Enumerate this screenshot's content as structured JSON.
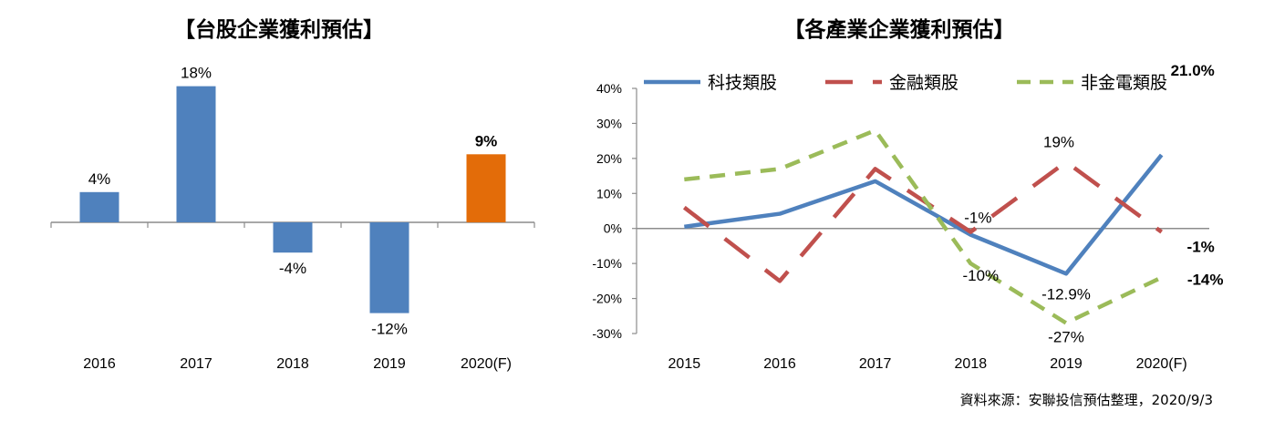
{
  "chart_data": [
    {
      "type": "bar",
      "title": "【台股企業獲利預估】",
      "categories": [
        "2016",
        "2017",
        "2018",
        "2019",
        "2020(F)"
      ],
      "values": [
        4,
        18,
        -4,
        -12,
        9
      ],
      "data_labels": [
        "4%",
        "18%",
        "-4%",
        "-12%",
        "9%"
      ],
      "bar_colors": [
        "#4f81bd",
        "#4f81bd",
        "#4f81bd",
        "#4f81bd",
        "#e36c09"
      ],
      "highlight_index": 4,
      "ylim": [
        -14,
        20
      ]
    },
    {
      "type": "line",
      "title": "【各產業企業獲利預估】",
      "x": [
        "2015",
        "2016",
        "2017",
        "2018",
        "2019",
        "2020(F)"
      ],
      "ylim": [
        -30,
        40
      ],
      "yticks": [
        "40%",
        "30%",
        "20%",
        "10%",
        "0%",
        "-10%",
        "-20%",
        "-30%"
      ],
      "legend_position": "top",
      "series": [
        {
          "name": "科技類股",
          "values": [
            0.5,
            4.2,
            13.5,
            -1.8,
            -12.9,
            21.0
          ],
          "color": "#4f81bd",
          "style": "solid",
          "labels": [
            {
              "i": 4,
              "text": "-12.9%",
              "bold": false
            },
            {
              "i": 5,
              "text": "21.0%",
              "bold": true
            }
          ]
        },
        {
          "name": "金融類股",
          "values": [
            6,
            -15,
            17,
            -1,
            19,
            -1
          ],
          "color": "#c0504d",
          "style": "long-dash",
          "labels": [
            {
              "i": 3,
              "text": "-1%",
              "bold": false
            },
            {
              "i": 4,
              "text": "19%",
              "bold": false
            },
            {
              "i": 5,
              "text": "-1%",
              "bold": true
            }
          ]
        },
        {
          "name": "非金電類股",
          "values": [
            14,
            17,
            28,
            -10,
            -27,
            -14
          ],
          "color": "#9bbb59",
          "style": "dash",
          "labels": [
            {
              "i": 3,
              "text": "-10%",
              "bold": false
            },
            {
              "i": 4,
              "text": "-27%",
              "bold": false
            },
            {
              "i": 5,
              "text": "-14%",
              "bold": true
            }
          ]
        }
      ]
    }
  ],
  "source_note": "資料來源：安聯投信預估整理，2020/9/3"
}
